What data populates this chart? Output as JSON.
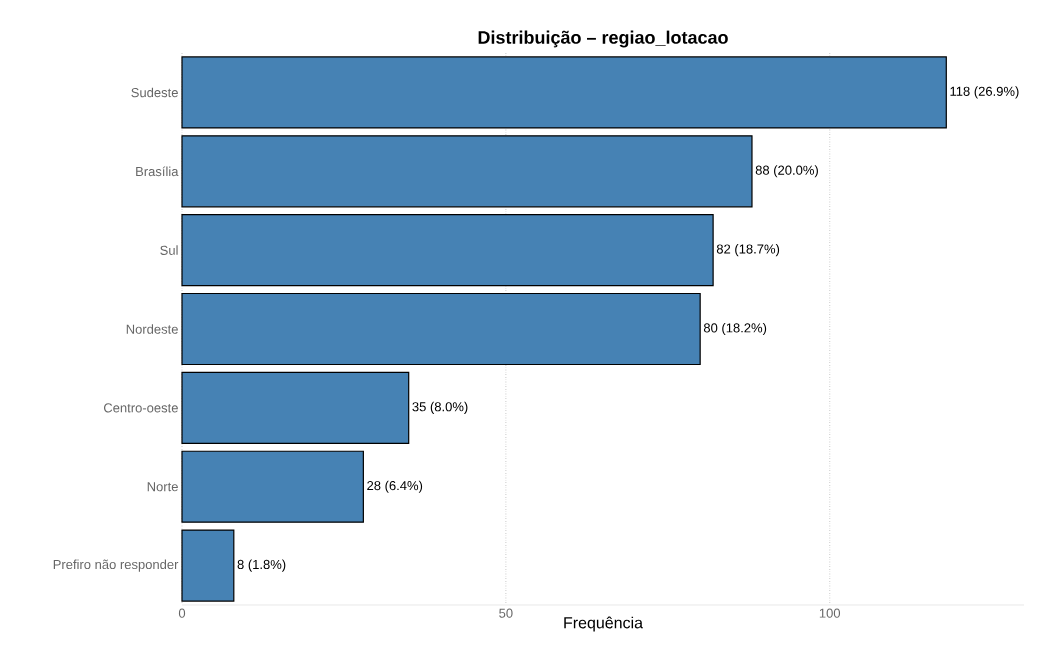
{
  "chart_data": {
    "type": "bar",
    "orientation": "horizontal",
    "title": "Distribuição – regiao_lotacao",
    "xlabel": "Frequência",
    "categories": [
      "Sudeste",
      "Brasília",
      "Sul",
      "Nordeste",
      "Centro-oeste",
      "Norte",
      "Prefiro não responder"
    ],
    "values": [
      118,
      88,
      82,
      80,
      35,
      28,
      8
    ],
    "value_labels": [
      "118 (26.9%)",
      "88 (20.0%)",
      "82 (18.7%)",
      "80 (18.2%)",
      "35 (8.0%)",
      "28 (6.4%)",
      "8 (1.8%)"
    ],
    "color": "#4682b4",
    "xlim": [
      0,
      130
    ],
    "xticks": [
      0,
      50,
      100
    ],
    "grid": "x"
  }
}
